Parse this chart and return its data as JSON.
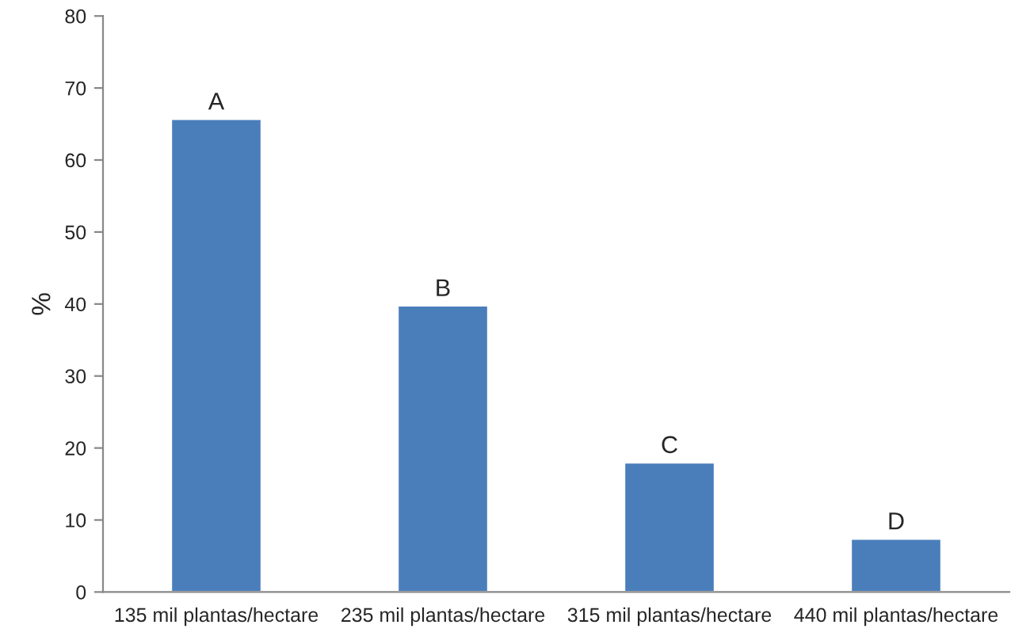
{
  "chart_data": {
    "type": "bar",
    "ylabel": "%",
    "categories": [
      "135 mil plantas/hectare",
      "235 mil plantas/hectare",
      "315 mil plantas/hectare",
      "440 mil plantas/hectare"
    ],
    "values": [
      65.7,
      39.8,
      18,
      7.4
    ],
    "color": "#4a7ebb",
    "ylim": [
      0,
      80
    ],
    "yticks": [
      0,
      10,
      20,
      30,
      40,
      50,
      60,
      70,
      80
    ],
    "grid": false,
    "annotations": [
      {
        "text": "A",
        "x": "135 mil plantas/hectare",
        "y": 65.7
      },
      {
        "text": "B",
        "x": "235 mil plantas/hectare",
        "y": 39.8
      },
      {
        "text": "C",
        "x": "315 mil plantas/hectare",
        "y": 18
      },
      {
        "text": "D",
        "x": "440 mil plantas/hectare",
        "y": 7.4
      }
    ]
  }
}
